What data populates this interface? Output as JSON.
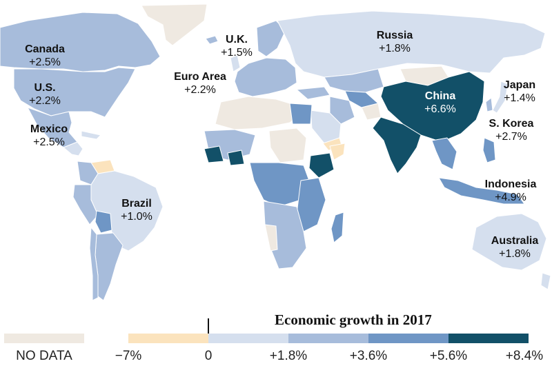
{
  "colors": {
    "ocean": "#ffffff",
    "no_data": "#efe9e1",
    "negative": "#fbe3bd",
    "b0": "#d5dfee",
    "b1": "#a7bcdb",
    "b2": "#6f96c5",
    "b3": "#125068",
    "border": "#ffffff"
  },
  "labels": {
    "canada": {
      "name": "Canada",
      "value": "+2.5%"
    },
    "us": {
      "name": "U.S.",
      "value": "+2.2%"
    },
    "mexico": {
      "name": "Mexico",
      "value": "+2.5%"
    },
    "brazil": {
      "name": "Brazil",
      "value": "+1.0%"
    },
    "uk": {
      "name": "U.K.",
      "value": "+1.5%"
    },
    "euro": {
      "name": "Euro Area",
      "value": "+2.2%"
    },
    "russia": {
      "name": "Russia",
      "value": "+1.8%"
    },
    "china": {
      "name": "China",
      "value": "+6.6%"
    },
    "japan": {
      "name": "Japan",
      "value": "+1.4%"
    },
    "skorea": {
      "name": "S. Korea",
      "value": "+2.7%"
    },
    "indonesia": {
      "name": "Indonesia",
      "value": "+4.9%"
    },
    "australia": {
      "name": "Australia",
      "value": "+1.8%"
    }
  },
  "legend": {
    "title": "Economic growth in 2017",
    "no_data_label": "NO DATA",
    "ticks": [
      "−7%",
      "0",
      "+1.8%",
      "+3.6%",
      "+5.6%",
      "+8.4%"
    ]
  }
}
